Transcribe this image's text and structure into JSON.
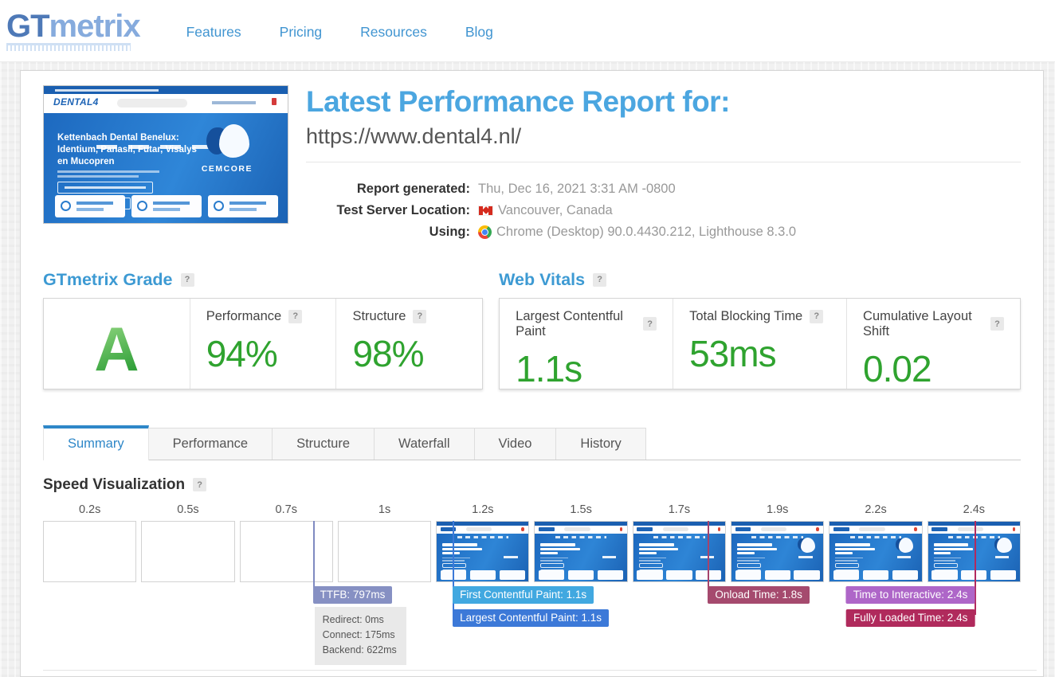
{
  "help_icon": "?",
  "header": {
    "logo_gt": "GT",
    "logo_metrix": "metrix",
    "nav": {
      "features": "Features",
      "pricing": "Pricing",
      "resources": "Resources",
      "blog": "Blog"
    }
  },
  "report": {
    "title": "Latest Performance Report for:",
    "url": "https://www.dental4.nl/",
    "generated_label": "Report generated:",
    "generated_value": "Thu, Dec 16, 2021 3:31 AM -0800",
    "location_label": "Test Server Location:",
    "location_value": "Vancouver, Canada",
    "using_label": "Using:",
    "using_value": "Chrome (Desktop) 90.0.4430.212, Lighthouse 8.3.0"
  },
  "grade": {
    "heading": "GTmetrix Grade",
    "letter": "A",
    "performance_label": "Performance",
    "performance_value": "94%",
    "structure_label": "Structure",
    "structure_value": "98%"
  },
  "web_vitals": {
    "heading": "Web Vitals",
    "lcp_label": "Largest Contentful Paint",
    "lcp_value": "1.1s",
    "tbt_label": "Total Blocking Time",
    "tbt_value": "53ms",
    "cls_label": "Cumulative Layout Shift",
    "cls_value": "0.02"
  },
  "tabs": {
    "summary": "Summary",
    "performance": "Performance",
    "structure": "Structure",
    "waterfall": "Waterfall",
    "video": "Video",
    "history": "History"
  },
  "viz": {
    "heading": "Speed Visualization",
    "ticks": [
      "0.2s",
      "0.5s",
      "0.7s",
      "1s",
      "1.2s",
      "1.5s",
      "1.7s",
      "1.9s",
      "2.2s",
      "2.4s"
    ],
    "ttfb_label": "TTFB: 797ms",
    "ttfb_redirect": "Redirect: 0ms",
    "ttfb_connect": "Connect: 175ms",
    "ttfb_backend": "Backend: 622ms",
    "fcp_label": "First Contentful Paint: 1.1s",
    "lcp_label": "Largest Contentful Paint: 1.1s",
    "onload_label": "Onload Time: 1.8s",
    "tti_label": "Time to Interactive: 2.4s",
    "fully_loaded_label": "Fully Loaded Time: 2.4s"
  },
  "thumbnail": {
    "site_logo": "DENTAL4",
    "headline": "Kettenbach Dental Benelux: Identium, Panasil, Futar, Visalys en Mucopren",
    "product_label": "CEMCORE"
  },
  "colors": {
    "accent_blue": "#4195d1",
    "heading_blue": "#3d9ad3",
    "score_green": "#2fa32f",
    "badge_ttfb": "#8690c3",
    "badge_fcp": "#41a8e0",
    "badge_lcp": "#3c79d8",
    "badge_onload": "#a54a6e",
    "badge_tti": "#ae66c8",
    "badge_fully_loaded": "#b02a5c"
  }
}
